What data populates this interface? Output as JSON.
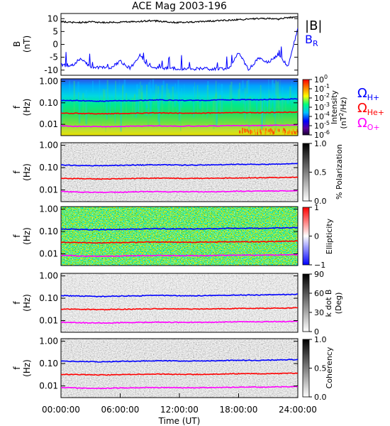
{
  "title": "ACE Mag 2003-196",
  "chart_data": [
    {
      "type": "line",
      "panel": "magnetic-field",
      "ylabel_top": "B",
      "ylabel_bottom": "(nT)",
      "ylim": [
        -12,
        12
      ],
      "yticks": [
        "10",
        "5",
        "0",
        "-5",
        "-10"
      ],
      "ytick_values": [
        10,
        5,
        0,
        -5,
        -10
      ],
      "xlim": [
        0,
        24
      ],
      "series": [
        {
          "name": "|B|",
          "color": "#000000",
          "x": [
            0,
            1,
            2,
            3,
            4,
            5,
            6,
            7,
            8,
            9,
            10,
            11,
            12,
            13,
            14,
            15,
            16,
            17,
            18,
            19,
            20,
            21,
            22,
            23,
            24
          ],
          "y": [
            8.8,
            8.6,
            8.5,
            8.7,
            8.6,
            8.5,
            8.6,
            8.7,
            8.9,
            9.2,
            9.0,
            8.7,
            8.5,
            8.6,
            8.8,
            9.0,
            9.2,
            9.4,
            9.6,
            9.8,
            10.0,
            10.1,
            9.8,
            10.4,
            10.6
          ]
        },
        {
          "name": "B",
          "subscript": "R",
          "color": "#0000ff",
          "x": [
            0,
            1,
            2,
            3,
            4,
            5,
            6,
            7,
            8,
            9,
            10,
            11,
            12,
            13,
            14,
            15,
            16,
            17,
            18,
            19,
            20,
            21,
            22,
            23,
            24
          ],
          "y": [
            -8.0,
            -8.5,
            -5.5,
            -8.8,
            -9.0,
            -9.2,
            -6.5,
            -9.3,
            -4.0,
            -9.0,
            -9.1,
            -9.3,
            -9.4,
            -9.5,
            -9.4,
            -9.5,
            -9.6,
            -9.7,
            -3.0,
            -9.8,
            -5.5,
            -7.0,
            -4.0,
            -8.5,
            6.0
          ]
        }
      ]
    },
    {
      "type": "heatmap",
      "panel": "intensity",
      "ylabel_top": "f",
      "ylabel_bottom": "(Hz)",
      "yscale": "log",
      "ylim": [
        0.003,
        1.3
      ],
      "yticks": [
        "1.00",
        "0.10",
        "0.01"
      ],
      "ytick_values": [
        1.0,
        0.1,
        0.01
      ],
      "colorbar_label": "Intensity (nT²/Hz)",
      "colorbar_label_parts": [
        "Intensity",
        "(nT",
        "2",
        "/Hz)"
      ],
      "colorbar_scale": "rainbow",
      "colorbar_ticks": [
        {
          "base": "10",
          "exp": "0"
        },
        {
          "base": "10",
          "exp": "-1"
        },
        {
          "base": "10",
          "exp": "-2"
        },
        {
          "base": "10",
          "exp": "-3"
        },
        {
          "base": "10",
          "exp": "-4"
        },
        {
          "base": "10",
          "exp": "-5"
        },
        {
          "base": "10",
          "exp": "-6"
        }
      ],
      "legend": [
        {
          "symbol": "Ω",
          "sub": "H+",
          "color": "#0000ff"
        },
        {
          "symbol": "Ω",
          "sub": "He+",
          "color": "#ff0000"
        },
        {
          "symbol": "Ω",
          "sub": "O+",
          "color": "#ff00ff"
        }
      ]
    },
    {
      "type": "heatmap",
      "panel": "polarization",
      "ylabel_top": "f",
      "ylabel_bottom": "(Hz)",
      "yscale": "log",
      "yticks": [
        "1.00",
        "0.10",
        "0.01"
      ],
      "ytick_values": [
        1.0,
        0.1,
        0.01
      ],
      "colorbar_label": "% Polarization",
      "colorbar_scale": "gray",
      "colorbar_ticks": [
        "1.0",
        "0.5",
        "0.0"
      ],
      "colorbar_range": [
        0,
        1
      ]
    },
    {
      "type": "heatmap",
      "panel": "ellipticity",
      "ylabel_top": "f",
      "ylabel_bottom": "(Hz)",
      "yscale": "log",
      "yticks": [
        "1.00",
        "0.10",
        "0.01"
      ],
      "ytick_values": [
        1.0,
        0.1,
        0.01
      ],
      "colorbar_label": "Ellipticity",
      "colorbar_scale": "red-white-blue",
      "colorbar_ticks": [
        "1",
        "0",
        "−1"
      ],
      "colorbar_range": [
        -1,
        1
      ]
    },
    {
      "type": "heatmap",
      "panel": "k-dot-b",
      "ylabel_top": "f",
      "ylabel_bottom": "(Hz)",
      "yscale": "log",
      "yticks": [
        "1.00",
        "0.10",
        "0.01"
      ],
      "ytick_values": [
        1.0,
        0.1,
        0.01
      ],
      "colorbar_label": "k dot B",
      "colorbar_label_2": "(Deg)",
      "colorbar_scale": "gray",
      "colorbar_ticks": [
        "90",
        "60",
        "30",
        "0"
      ],
      "colorbar_range": [
        0,
        90
      ]
    },
    {
      "type": "heatmap",
      "panel": "coherency",
      "ylabel_top": "f",
      "ylabel_bottom": "(Hz)",
      "yscale": "log",
      "yticks": [
        "1.00",
        "0.10",
        "0.01"
      ],
      "ytick_values": [
        1.0,
        0.1,
        0.01
      ],
      "colorbar_label": "Coherency",
      "colorbar_scale": "gray",
      "colorbar_ticks": [
        "1.0",
        "0.5",
        "0.0"
      ],
      "colorbar_range": [
        0,
        1
      ]
    }
  ],
  "gyrofrequency_lines": {
    "x": [
      0,
      2,
      4,
      6,
      8,
      10,
      12,
      14,
      16,
      18,
      20,
      22,
      24
    ],
    "H+": [
      0.13,
      0.125,
      0.12,
      0.125,
      0.13,
      0.135,
      0.13,
      0.13,
      0.135,
      0.14,
      0.14,
      0.145,
      0.15
    ],
    "He+": [
      0.033,
      0.032,
      0.031,
      0.032,
      0.033,
      0.034,
      0.033,
      0.033,
      0.034,
      0.035,
      0.035,
      0.036,
      0.037
    ],
    "O+": [
      0.0085,
      0.008,
      0.0078,
      0.008,
      0.0083,
      0.0085,
      0.0083,
      0.0083,
      0.0085,
      0.0088,
      0.0088,
      0.009,
      0.0093
    ]
  },
  "xaxis": {
    "ticks": [
      "00:00:00",
      "06:00:00",
      "12:00:00",
      "18:00:00",
      "24:00:00"
    ],
    "tick_values": [
      0,
      6,
      12,
      18,
      24
    ],
    "label": "Time (UT)"
  }
}
